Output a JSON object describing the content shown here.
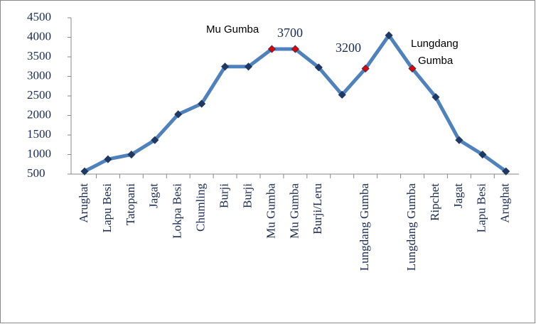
{
  "chart_data": {
    "type": "line",
    "categories": [
      "Arughat",
      "Lapu Besi",
      "Tatopani",
      "Jagat",
      "Lokpa Besi",
      "Chumling",
      "Burji",
      "Burji",
      "Mu Gumba",
      "Mu Gumba",
      "Burji/Leru",
      null,
      "Lungdang Gumba",
      null,
      "Lungdang Gumba",
      "Ripchet",
      "Jagat",
      "Lapu Besi",
      "Arughat"
    ],
    "values": [
      570,
      880,
      1000,
      1370,
      2030,
      2300,
      3250,
      3250,
      3700,
      3700,
      3230,
      2530,
      3200,
      4050,
      3200,
      2470,
      1370,
      1000,
      570
    ],
    "color": "#4f81bd",
    "marker_colors": [
      "#1f3864",
      "#1f3864",
      "#1f3864",
      "#1f3864",
      "#1f3864",
      "#1f3864",
      "#1f3864",
      "#1f3864",
      "#e00000",
      "#e00000",
      "#1f3864",
      "#1f3864",
      "#e00000",
      "#1f3864",
      "#e00000",
      "#1f3864",
      "#1f3864",
      "#1f3864",
      "#1f3864"
    ],
    "annotations": [
      "Mu Gumba",
      "3700",
      "3200",
      "Lungdang",
      "Gumba"
    ],
    "ylim": [
      500,
      4500
    ],
    "yticks": [
      500,
      1000,
      1500,
      2000,
      2500,
      3000,
      3500,
      4000,
      4500
    ]
  }
}
